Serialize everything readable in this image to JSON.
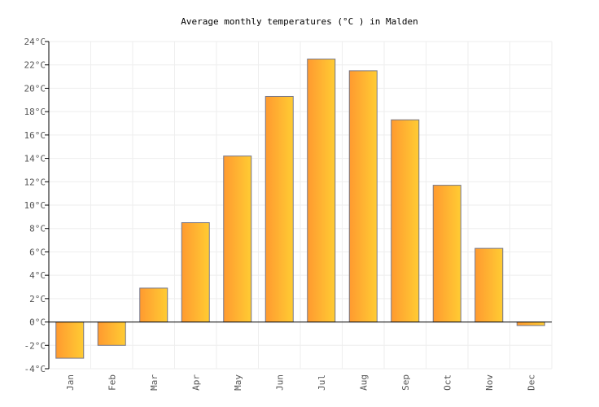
{
  "chart_data": {
    "type": "bar",
    "title": "Average monthly temperatures (°C ) in Malden",
    "categories": [
      "Jan",
      "Feb",
      "Mar",
      "Apr",
      "May",
      "Jun",
      "Jul",
      "Aug",
      "Sep",
      "Oct",
      "Nov",
      "Dec"
    ],
    "values": [
      -3.1,
      -2.0,
      2.9,
      8.5,
      14.2,
      19.3,
      22.5,
      21.5,
      17.3,
      11.7,
      6.3,
      -0.3
    ],
    "ylim": [
      -4,
      24
    ],
    "yticks": [
      -4,
      -2,
      0,
      2,
      4,
      6,
      8,
      10,
      12,
      14,
      16,
      18,
      20,
      22,
      24
    ],
    "yunit": "°C",
    "grid": true,
    "colors": {
      "bar_start": "#ff9a30",
      "bar_end": "#ffcc33",
      "bar_border": "#777788",
      "grid": "#eeeeee"
    }
  }
}
